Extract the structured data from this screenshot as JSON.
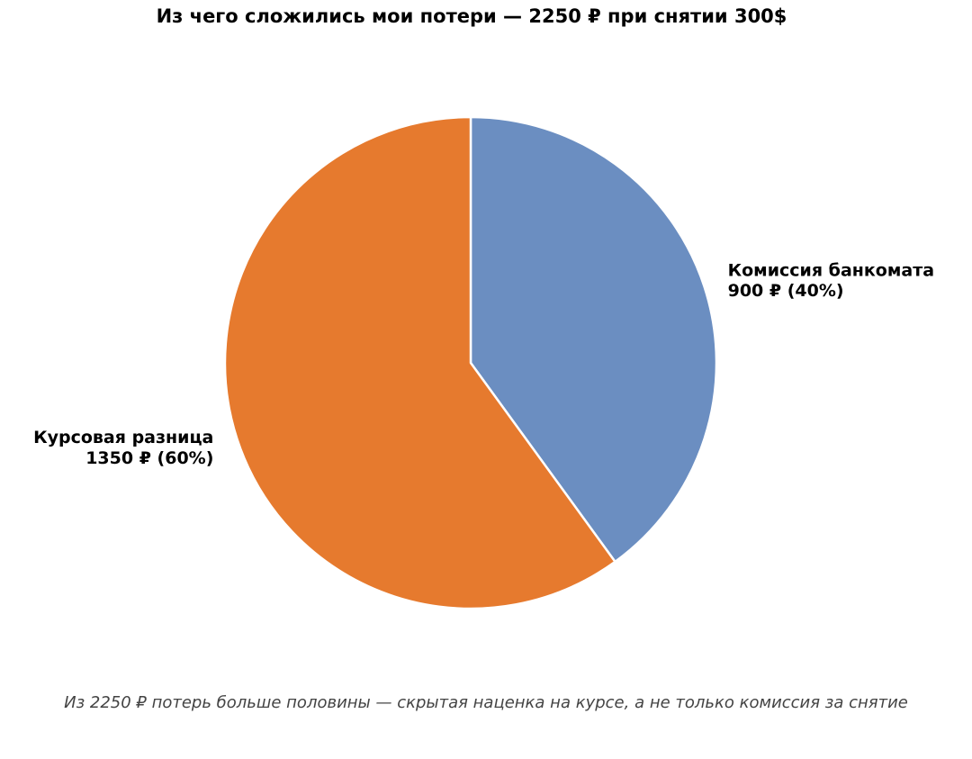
{
  "chart_data": {
    "type": "pie",
    "title": "Из чего сложились мои потери — 2250 ₽ при снятии 300$",
    "slices": [
      {
        "label": "Комиссия банкомата",
        "value": 900,
        "value_text": "900 ₽ (40%)",
        "color": "#6b8ec1"
      },
      {
        "label": "Курсовая разница",
        "value": 1350,
        "value_text": "1350 ₽ (60%)",
        "color": "#e67a2e"
      }
    ],
    "start_angle": "top (12 o'clock), clockwise",
    "legend": "none",
    "caption": "Из 2250 ₽ потерь больше половины — скрытая наценка на курсе, а не только комиссия за снятие"
  }
}
